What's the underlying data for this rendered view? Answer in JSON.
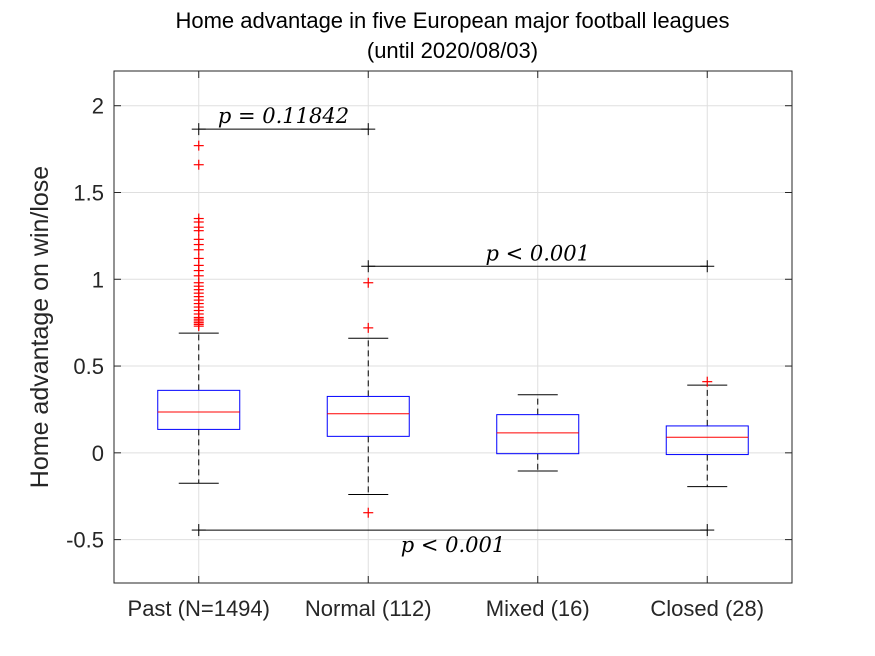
{
  "chart_data": {
    "type": "box",
    "title": "Home advantage in five European major football leagues",
    "subtitle": "(until 2020/08/03)",
    "xlabel": "",
    "ylabel": "Home advantage on win/lose",
    "ylim": [
      -0.75,
      2.2
    ],
    "yticks": [
      -0.5,
      0,
      0.5,
      1,
      1.5,
      2
    ],
    "ytick_labels": [
      "-0.5",
      "0",
      "0.5",
      "1",
      "1.5",
      "2"
    ],
    "grid": true,
    "colors": {
      "box": "#0000ff",
      "median": "#ff0000",
      "whisker": "#000000",
      "outlier": "#ff0000",
      "grid": "#dfdfdf"
    },
    "categories": [
      "Past (N=1494)",
      "Normal (112)",
      "Mixed (16)",
      "Closed (28)"
    ],
    "boxes": [
      {
        "q1": 0.135,
        "median": 0.235,
        "q3": 0.36,
        "whisker_low": -0.175,
        "whisker_high": 0.69,
        "outliers": [
          1.77,
          1.66,
          1.35,
          1.33,
          1.3,
          1.28,
          1.23,
          1.2,
          1.17,
          1.12,
          1.08,
          1.05,
          1.02,
          0.98,
          0.96,
          0.94,
          0.92,
          0.9,
          0.88,
          0.86,
          0.84,
          0.82,
          0.8,
          0.78,
          0.77,
          0.76,
          0.75,
          0.74,
          0.73
        ]
      },
      {
        "q1": 0.095,
        "median": 0.225,
        "q3": 0.325,
        "whisker_low": -0.24,
        "whisker_high": 0.66,
        "outliers": [
          0.98,
          0.72,
          -0.345
        ]
      },
      {
        "q1": -0.005,
        "median": 0.115,
        "q3": 0.22,
        "whisker_low": -0.105,
        "whisker_high": 0.335,
        "outliers": []
      },
      {
        "q1": -0.01,
        "median": 0.09,
        "q3": 0.155,
        "whisker_low": -0.195,
        "whisker_high": 0.39,
        "outliers": [
          0.41
        ]
      }
    ],
    "annotations": [
      {
        "text": "p = 0.11842",
        "from": 0,
        "to": 1,
        "y": 1.865,
        "label_anchor": "above"
      },
      {
        "text": "p < 0.001",
        "from": 1,
        "to": 3,
        "y": 1.075,
        "label_anchor": "above"
      },
      {
        "text": "p < 0.001",
        "from": 0,
        "to": 3,
        "y": -0.445,
        "label_anchor": "below"
      }
    ]
  }
}
